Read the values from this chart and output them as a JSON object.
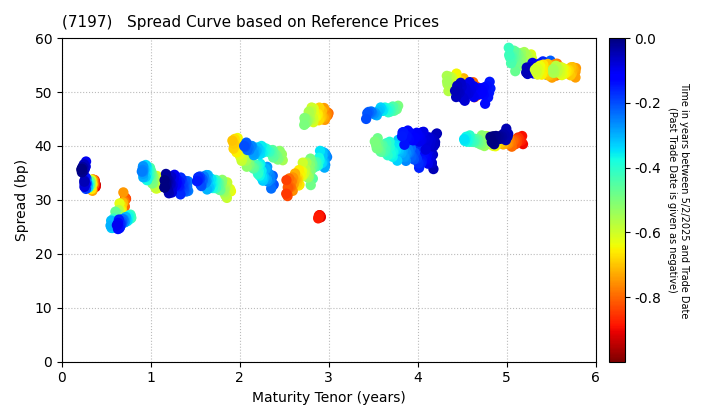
{
  "title": "(7197)   Spread Curve based on Reference Prices",
  "xlabel": "Maturity Tenor (years)",
  "ylabel": "Spread (bp)",
  "colorbar_label": "Time in years between 5/2/2025 and Trade Date\n(Past Trade Date is given as negative)",
  "xlim": [
    0,
    6
  ],
  "ylim": [
    0,
    60
  ],
  "xticks": [
    0,
    1,
    2,
    3,
    4,
    5,
    6
  ],
  "yticks": [
    0,
    10,
    20,
    30,
    40,
    50,
    60
  ],
  "cbar_ticks": [
    0.0,
    -0.2,
    -0.4,
    -0.6,
    -0.8
  ],
  "cbar_vmin": -1.0,
  "cbar_vmax": 0.0,
  "background_color": "#ffffff",
  "grid_color": "#bbbbbb",
  "marker_size": 55,
  "seed": 42
}
